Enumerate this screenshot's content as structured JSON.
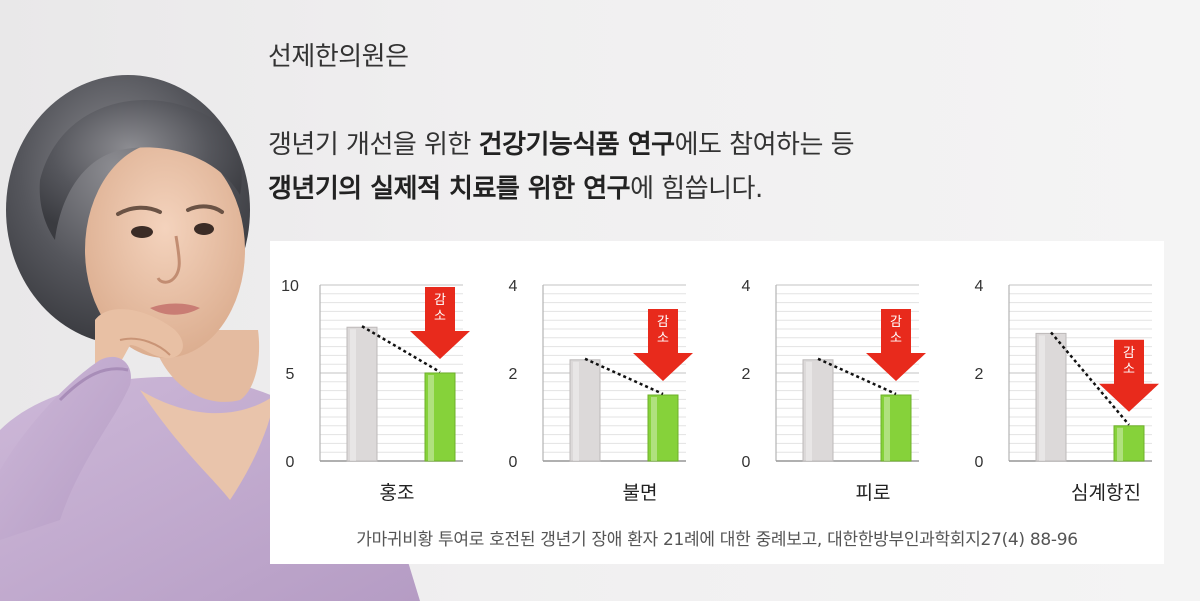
{
  "header": {
    "intro": "선제한의원은",
    "line1": {
      "pre": "갱년기 개선을 위한 ",
      "bold": "건강기능식품 연구",
      "post": "에도 참여하는 등"
    },
    "line2": {
      "bold": "갱년기의 실제적 치료를 위한 연구",
      "post": "에 힘씁니다."
    }
  },
  "colors": {
    "before_bar": "#dcd9d9",
    "after_bar": "#86d23a",
    "arrow": "#e82a1c",
    "trend": "#111111",
    "grid": "#e3e3e3"
  },
  "arrow_label": "감소",
  "chart_data": [
    {
      "type": "bar",
      "title": "",
      "xlabel": "홍조",
      "ylabel": "",
      "ylim": [
        0,
        10
      ],
      "yticks": [
        0,
        5,
        10
      ],
      "categories": [
        "",
        ""
      ],
      "values": [
        7.6,
        5.0
      ],
      "grid": true
    },
    {
      "type": "bar",
      "title": "",
      "xlabel": "불면",
      "ylabel": "",
      "ylim": [
        0,
        4
      ],
      "yticks": [
        0,
        2,
        4
      ],
      "categories": [
        "",
        ""
      ],
      "values": [
        2.3,
        1.5
      ],
      "grid": true
    },
    {
      "type": "bar",
      "title": "",
      "xlabel": "피로",
      "ylabel": "",
      "ylim": [
        0,
        4
      ],
      "yticks": [
        0,
        2,
        4
      ],
      "categories": [
        "",
        ""
      ],
      "values": [
        2.3,
        1.5
      ],
      "grid": true
    },
    {
      "type": "bar",
      "title": "",
      "xlabel": "심계항진",
      "ylabel": "",
      "ylim": [
        0,
        4
      ],
      "yticks": [
        0,
        2,
        4
      ],
      "categories": [
        "",
        ""
      ],
      "values": [
        2.9,
        0.8
      ],
      "grid": true
    }
  ],
  "source_text": "가마귀비황 투여로 호전된 갱년기 장애 환자 21례에 대한 중례보고, 대한한방부인과학회지27(4) 88-96"
}
